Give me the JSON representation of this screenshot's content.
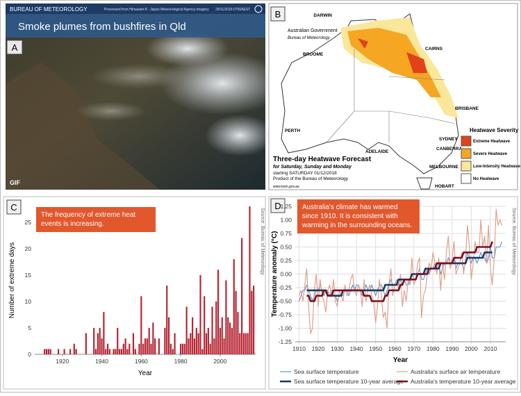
{
  "panels": {
    "a": {
      "letter": "A",
      "agency": "BUREAU OF METEOROLOGY",
      "credit": "Processed from Himawari-8 - Japan Meteorological Agency imagery",
      "timestamp": "29/11/2018 0750AEST",
      "title": "Smoke plumes from bushfires in Qld",
      "badge": "GIF"
    },
    "b": {
      "letter": "B",
      "government": "Australian Government",
      "agency": "Bureau of Meteorology",
      "cities": [
        "DARWIN",
        "BROOME",
        "CAIRNS",
        "BRISBANE",
        "PERTH",
        "ADELAIDE",
        "SYDNEY",
        "CANBERRA",
        "MELBOURNE",
        "HOBART"
      ],
      "title": "Three-day Heatwave Forecast",
      "subtitle": "for Saturday, Sunday and Monday",
      "start": "starting SATURDAY 01/12/2018",
      "product": "Product of the Bureau of Meteorology",
      "url": "www.bom.gov.au",
      "legend_title": "Heatwave Severity",
      "legend": [
        {
          "label": "Extreme Heatwave",
          "color": "#e0421c"
        },
        {
          "label": "Severe Heatwave",
          "color": "#f5a623"
        },
        {
          "label": "Low-Intensity Heatwave",
          "color": "#fbe79a"
        },
        {
          "label": "No Heatwave",
          "color": "#ffffff"
        }
      ]
    }
  },
  "chart_data": [
    {
      "type": "bar",
      "panel": "C",
      "annotation": "The frequency of extreme heat events is increasing.",
      "source": "Source: Bureau of Meteorology",
      "x_label": "Year",
      "y_label": "Number of extreme days",
      "color": "#b5202e",
      "grid": false,
      "xlim": [
        1906,
        2018
      ],
      "xticks": [
        1920,
        1940,
        1960,
        1980,
        2000
      ],
      "ylim": [
        0,
        28
      ],
      "yticks": [
        0,
        5,
        10,
        15,
        20,
        25
      ],
      "x": [
        1910,
        1911,
        1912,
        1913,
        1914,
        1915,
        1916,
        1917,
        1918,
        1919,
        1920,
        1921,
        1922,
        1923,
        1924,
        1925,
        1926,
        1927,
        1928,
        1929,
        1930,
        1931,
        1932,
        1933,
        1934,
        1935,
        1936,
        1937,
        1938,
        1939,
        1940,
        1941,
        1942,
        1943,
        1944,
        1945,
        1946,
        1947,
        1948,
        1949,
        1950,
        1951,
        1952,
        1953,
        1954,
        1955,
        1956,
        1957,
        1958,
        1959,
        1960,
        1961,
        1962,
        1963,
        1964,
        1965,
        1966,
        1967,
        1968,
        1969,
        1970,
        1971,
        1972,
        1973,
        1974,
        1975,
        1976,
        1977,
        1978,
        1979,
        1980,
        1981,
        1982,
        1983,
        1984,
        1985,
        1986,
        1987,
        1988,
        1989,
        1990,
        1991,
        1992,
        1993,
        1994,
        1995,
        1996,
        1997,
        1998,
        1999,
        2000,
        2001,
        2002,
        2003,
        2004,
        2005,
        2006,
        2007,
        2008,
        2009,
        2010,
        2011,
        2012,
        2013,
        2014,
        2015,
        2016,
        2017
      ],
      "values": [
        0,
        1,
        1,
        1,
        1,
        0,
        0,
        0,
        1,
        0,
        0,
        1,
        0,
        0,
        1,
        0,
        2,
        1,
        0,
        0,
        0,
        0,
        4,
        0,
        0,
        0,
        5,
        1,
        4,
        5,
        3,
        8,
        1,
        2,
        1,
        0,
        1,
        1,
        5,
        1,
        1,
        2,
        3,
        1,
        2,
        0,
        4,
        1,
        0,
        2,
        11,
        2,
        3,
        3,
        5,
        2,
        6,
        3,
        0,
        3,
        0,
        0,
        5,
        13,
        7,
        2,
        1,
        4,
        0,
        0,
        2,
        2,
        2,
        9,
        3,
        4,
        7,
        3,
        5,
        4,
        15,
        1,
        11,
        4,
        5,
        2,
        9,
        3,
        10,
        16,
        5,
        7,
        3,
        14,
        7,
        6,
        5,
        18,
        12,
        8,
        4,
        22,
        4,
        4,
        4,
        28,
        12,
        13
      ]
    },
    {
      "type": "line",
      "panel": "D",
      "annotation": "Australia's climate has warmed since 1910. It is consistent with warming in the surrounding oceans.",
      "source": "Source: Bureau of Meteorology",
      "x_label": "Year",
      "y_label": "Temperature anomaly (°C)",
      "grid": true,
      "xlim": [
        1908,
        2018
      ],
      "xticks": [
        1910,
        1920,
        1930,
        1940,
        1950,
        1960,
        1970,
        1980,
        1990,
        2000,
        2010
      ],
      "ylim": [
        -1.25,
        1.25
      ],
      "yticks": [
        -1.25,
        {
          "value": -1,
          "label": "-1.00"
        },
        -0.75,
        {
          "value": -0.5,
          "label": "-0.50"
        },
        -0.25,
        {
          "value": 0,
          "label": "0.00"
        },
        0.25,
        {
          "value": 0.5,
          "label": "0.50"
        },
        0.75,
        {
          "value": 1,
          "label": "1.00"
        },
        1.25
      ],
      "x": [
        1910,
        1911,
        1912,
        1913,
        1914,
        1915,
        1916,
        1917,
        1918,
        1919,
        1920,
        1921,
        1922,
        1923,
        1924,
        1925,
        1926,
        1927,
        1928,
        1929,
        1930,
        1931,
        1932,
        1933,
        1934,
        1935,
        1936,
        1937,
        1938,
        1939,
        1940,
        1941,
        1942,
        1943,
        1944,
        1945,
        1946,
        1947,
        1948,
        1949,
        1950,
        1951,
        1952,
        1953,
        1954,
        1955,
        1956,
        1957,
        1958,
        1959,
        1960,
        1961,
        1962,
        1963,
        1964,
        1965,
        1966,
        1967,
        1968,
        1969,
        1970,
        1971,
        1972,
        1973,
        1974,
        1975,
        1976,
        1977,
        1978,
        1979,
        1980,
        1981,
        1982,
        1983,
        1984,
        1985,
        1986,
        1987,
        1988,
        1989,
        1990,
        1991,
        1992,
        1993,
        1994,
        1995,
        1996,
        1997,
        1998,
        1999,
        2000,
        2001,
        2002,
        2003,
        2004,
        2005,
        2006,
        2007,
        2008,
        2009,
        2010,
        2011,
        2012,
        2013,
        2014,
        2015,
        2016
      ],
      "series": [
        {
          "name": "Sea surface temperature",
          "color": "#5b9bd5",
          "width": 1.2,
          "values": [
            -0.5,
            -0.4,
            -0.3,
            -0.3,
            -0.2,
            -0.3,
            -0.4,
            -0.5,
            -0.4,
            -0.3,
            -0.3,
            -0.2,
            -0.3,
            -0.4,
            -0.3,
            -0.3,
            -0.4,
            -0.3,
            -0.4,
            -0.4,
            -0.5,
            -0.4,
            -0.4,
            -0.4,
            -0.3,
            -0.3,
            -0.4,
            -0.3,
            -0.2,
            -0.3,
            -0.2,
            -0.2,
            -0.3,
            -0.4,
            -0.3,
            -0.2,
            -0.3,
            -0.3,
            -0.2,
            -0.3,
            -0.4,
            -0.3,
            -0.2,
            -0.2,
            -0.3,
            -0.4,
            -0.3,
            -0.2,
            -0.1,
            -0.2,
            -0.2,
            -0.1,
            -0.2,
            -0.1,
            -0.2,
            -0.1,
            -0.2,
            -0.2,
            -0.1,
            0.0,
            -0.1,
            -0.1,
            0.0,
            0.1,
            -0.1,
            -0.1,
            0.0,
            0.1,
            0.0,
            0.1,
            0.1,
            0.2,
            0.1,
            0.2,
            0.0,
            0.1,
            0.2,
            0.2,
            0.3,
            0.2,
            0.2,
            0.3,
            0.1,
            0.2,
            0.2,
            0.2,
            0.1,
            0.2,
            0.4,
            0.3,
            0.2,
            0.3,
            0.3,
            0.2,
            0.3,
            0.4,
            0.3,
            0.3,
            0.2,
            0.3,
            0.5,
            0.3,
            0.3,
            0.5,
            0.5,
            0.5,
            0.6
          ]
        },
        {
          "name": "Australia's surface air temperature",
          "color": "#e0a08c",
          "width": 1.2,
          "values": [
            -0.4,
            -0.3,
            -0.5,
            -0.2,
            0.1,
            -0.6,
            -1.1,
            -1.0,
            -0.3,
            0.0,
            -0.6,
            -0.1,
            -0.4,
            -0.5,
            -0.7,
            -0.3,
            -0.2,
            -0.4,
            -0.1,
            -0.5,
            -0.6,
            -0.3,
            -0.4,
            -0.5,
            -0.2,
            -0.4,
            -0.3,
            -0.1,
            0.0,
            -0.3,
            -0.4,
            -0.2,
            -0.3,
            -0.6,
            -0.1,
            -0.5,
            -0.3,
            -0.2,
            -0.4,
            -0.5,
            -0.9,
            -0.6,
            -0.1,
            -0.4,
            -0.8,
            -0.7,
            -1.0,
            -0.2,
            0.1,
            -0.4,
            -0.2,
            -0.1,
            -0.3,
            0.0,
            -0.6,
            -0.3,
            -0.5,
            -0.1,
            -0.2,
            0.3,
            -0.2,
            -0.1,
            0.2,
            0.3,
            -0.8,
            -0.4,
            -0.3,
            0.0,
            0.2,
            0.1,
            0.4,
            0.2,
            0.0,
            0.3,
            -0.3,
            0.2,
            -0.1,
            0.4,
            0.7,
            0.1,
            0.3,
            0.6,
            0.0,
            0.1,
            0.2,
            0.4,
            0.0,
            0.3,
            0.9,
            0.5,
            -0.1,
            0.2,
            0.6,
            0.4,
            0.4,
            1.0,
            0.5,
            0.7,
            0.2,
            0.9,
            0.1,
            -0.2,
            0.3,
            1.2,
            0.9,
            1.0,
            0.9
          ]
        },
        {
          "name": "Sea surface temperature 10-year average",
          "color": "#1f3864",
          "width": 2.6,
          "values": [
            null,
            null,
            null,
            null,
            -0.3,
            -0.3,
            -0.3,
            -0.3,
            -0.3,
            -0.3,
            -0.3,
            -0.3,
            -0.3,
            -0.3,
            -0.3,
            -0.4,
            -0.4,
            -0.4,
            -0.4,
            -0.4,
            -0.4,
            -0.4,
            -0.4,
            -0.3,
            -0.3,
            -0.3,
            -0.3,
            -0.3,
            -0.3,
            -0.3,
            -0.3,
            -0.3,
            -0.3,
            -0.3,
            -0.3,
            -0.3,
            -0.3,
            -0.3,
            -0.3,
            -0.3,
            -0.3,
            -0.3,
            -0.3,
            -0.3,
            -0.3,
            -0.2,
            -0.2,
            -0.2,
            -0.2,
            -0.2,
            -0.2,
            -0.2,
            -0.1,
            -0.1,
            -0.1,
            -0.1,
            -0.1,
            -0.1,
            -0.1,
            0.0,
            0.0,
            0.0,
            0.0,
            0.0,
            0.0,
            0.0,
            0.1,
            0.1,
            0.1,
            0.1,
            0.1,
            0.1,
            0.1,
            0.1,
            0.2,
            0.2,
            0.2,
            0.2,
            0.2,
            0.2,
            0.2,
            0.2,
            0.2,
            0.2,
            0.2,
            0.2,
            0.2,
            0.2,
            0.3,
            0.3,
            0.3,
            0.3,
            0.3,
            0.3,
            0.3,
            0.3,
            0.3,
            0.4,
            0.4,
            0.4,
            0.4,
            0.4,
            null,
            null,
            null,
            null,
            null
          ]
        },
        {
          "name": "Australia's temperature 10-year average",
          "color": "#7b1020",
          "width": 2.6,
          "values": [
            null,
            null,
            null,
            null,
            -0.4,
            -0.4,
            -0.5,
            -0.5,
            -0.5,
            -0.4,
            -0.4,
            -0.4,
            -0.4,
            -0.3,
            -0.3,
            -0.4,
            -0.4,
            -0.4,
            -0.3,
            -0.3,
            -0.3,
            -0.3,
            -0.3,
            -0.3,
            -0.3,
            -0.3,
            -0.3,
            -0.3,
            -0.3,
            -0.3,
            -0.3,
            -0.3,
            -0.3,
            -0.3,
            -0.4,
            -0.4,
            -0.4,
            -0.4,
            -0.5,
            -0.5,
            -0.5,
            -0.5,
            -0.5,
            -0.5,
            -0.5,
            -0.4,
            -0.4,
            -0.3,
            -0.3,
            -0.3,
            -0.3,
            -0.3,
            -0.3,
            -0.2,
            -0.2,
            -0.1,
            -0.1,
            -0.1,
            -0.1,
            -0.1,
            -0.1,
            -0.1,
            0.0,
            0.0,
            0.0,
            0.0,
            0.0,
            0.0,
            0.1,
            0.1,
            0.1,
            0.1,
            0.2,
            0.2,
            0.2,
            0.2,
            0.2,
            0.2,
            0.2,
            0.2,
            0.2,
            0.3,
            0.3,
            0.3,
            0.3,
            0.3,
            0.4,
            0.4,
            0.4,
            0.4,
            0.4,
            0.4,
            0.4,
            0.5,
            0.5,
            0.5,
            0.5,
            0.5,
            0.5,
            0.5,
            0.5,
            0.6,
            null,
            null,
            null,
            null,
            null
          ]
        }
      ]
    }
  ]
}
